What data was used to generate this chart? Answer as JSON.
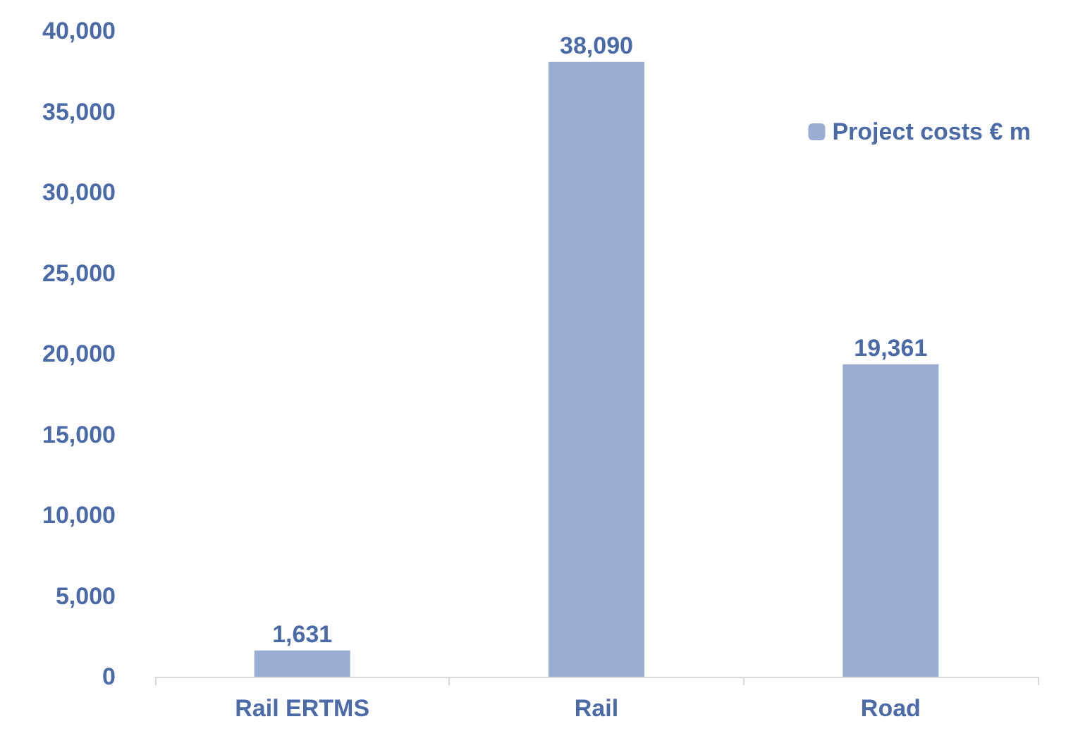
{
  "chart_data": {
    "type": "bar",
    "categories": [
      "Rail ERTMS",
      "Rail",
      "Road"
    ],
    "series": [
      {
        "name": "Project costs € m",
        "color": "#9aaed4",
        "values": [
          1631,
          38090,
          19361
        ],
        "value_labels": [
          "1,631",
          "38,090",
          "19,361"
        ]
      }
    ],
    "ylim": [
      0,
      40000
    ],
    "yticks": [
      0,
      {
        "value": 5000,
        "label": "5,000"
      },
      {
        "value": 10000,
        "label": "10,000"
      },
      {
        "value": 15000,
        "label": "15,000"
      },
      {
        "value": 20000,
        "label": "20,000"
      },
      {
        "value": 25000,
        "label": "25,000"
      },
      {
        "value": 30000,
        "label": "30,000"
      },
      {
        "value": 35000,
        "label": "35,000"
      },
      {
        "value": 40000,
        "label": "40,000"
      }
    ],
    "grid": false,
    "legend": "top right"
  }
}
